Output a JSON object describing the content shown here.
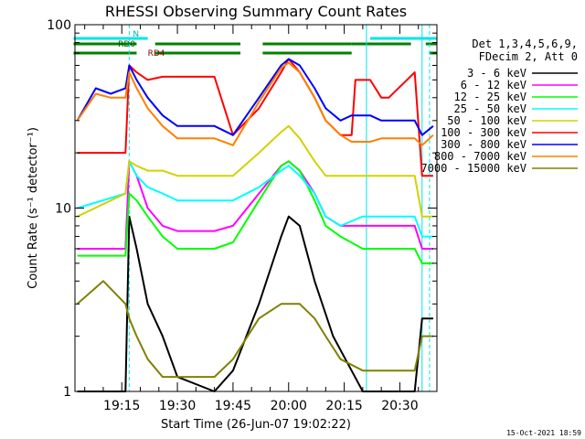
{
  "chart_data": {
    "type": "line",
    "title": "RHESSI Observing Summary Count Rates",
    "xlabel": "Start Time (26-Jun-07 19:02:22)",
    "ylabel": "Count Rate (s⁻¹ detector⁻¹)",
    "yscale": "log",
    "ylim": [
      1,
      100
    ],
    "xlim": [
      "19:02:22",
      "20:40:00"
    ],
    "x_ticks": [
      "19:15",
      "19:30",
      "19:45",
      "20:00",
      "20:15",
      "20:30"
    ],
    "y_ticks": [
      "1",
      "10",
      "100"
    ],
    "legend_header": [
      "Det 1,3,4,5,6,9,",
      "FDecim 2, Att 0"
    ],
    "legend_placement": "right",
    "timestamp": "15-Oct-2021 18:59",
    "flags": [
      {
        "label": "N",
        "color": "#00e5e5",
        "intervals": [
          [
            "19:02",
            "19:22"
          ],
          [
            "20:22",
            "20:40"
          ]
        ]
      },
      {
        "label": "RD0",
        "color": "#008000",
        "intervals": [
          [
            "19:02",
            "19:19"
          ],
          [
            "19:24",
            "19:47"
          ],
          [
            "19:53",
            "20:17"
          ],
          [
            "20:17",
            "20:33"
          ],
          [
            "20:37",
            "20:40"
          ]
        ]
      },
      {
        "label": "RD4",
        "color": "#008000",
        "intervals": [
          [
            "19:02",
            "19:19"
          ],
          [
            "19:24",
            "19:47"
          ],
          [
            "19:53",
            "20:17"
          ],
          [
            "20:38",
            "20:40"
          ]
        ]
      }
    ],
    "series": [
      {
        "name": "3 - 6 keV",
        "color": "#000000",
        "points": [
          [
            "19:03",
            1.0
          ],
          [
            "19:16",
            1.0
          ],
          [
            "19:17",
            9
          ],
          [
            "19:19",
            6
          ],
          [
            "19:22",
            3
          ],
          [
            "19:26",
            2
          ],
          [
            "19:30",
            1.2
          ],
          [
            "19:40",
            1.0
          ],
          [
            "19:45",
            1.3
          ],
          [
            "19:52",
            3
          ],
          [
            "19:58",
            7
          ],
          [
            "20:00",
            9
          ],
          [
            "20:03",
            8
          ],
          [
            "20:07",
            4
          ],
          [
            "20:12",
            2
          ],
          [
            "20:20",
            1.0
          ],
          [
            "20:34",
            1.0
          ],
          [
            "20:36",
            2.5
          ],
          [
            "20:39",
            2.5
          ]
        ]
      },
      {
        "name": "6 - 12 keV",
        "color": "#ff00ff",
        "points": [
          [
            "19:03",
            6.0
          ],
          [
            "19:16",
            6.0
          ],
          [
            "19:17",
            18
          ],
          [
            "19:19",
            15
          ],
          [
            "19:22",
            10
          ],
          [
            "19:26",
            8
          ],
          [
            "19:30",
            7.5
          ],
          [
            "19:40",
            7.5
          ],
          [
            "19:45",
            8
          ],
          [
            "19:52",
            12
          ],
          [
            "19:58",
            17
          ],
          [
            "20:00",
            18
          ],
          [
            "20:03",
            16
          ],
          [
            "20:07",
            12
          ],
          [
            "20:10",
            9
          ],
          [
            "20:14",
            8
          ],
          [
            "20:20",
            8
          ],
          [
            "20:23",
            8
          ],
          [
            "20:27",
            8
          ],
          [
            "20:34",
            8
          ],
          [
            "20:36",
            6
          ],
          [
            "20:39",
            6
          ]
        ]
      },
      {
        "name": "12 - 25 keV",
        "color": "#00ff00",
        "points": [
          [
            "19:03",
            5.5
          ],
          [
            "19:16",
            5.5
          ],
          [
            "19:17",
            12
          ],
          [
            "19:19",
            11
          ],
          [
            "19:22",
            9
          ],
          [
            "19:26",
            7
          ],
          [
            "19:30",
            6
          ],
          [
            "19:40",
            6
          ],
          [
            "19:45",
            6.5
          ],
          [
            "19:52",
            11
          ],
          [
            "19:58",
            17
          ],
          [
            "20:00",
            18
          ],
          [
            "20:03",
            16
          ],
          [
            "20:07",
            11
          ],
          [
            "20:10",
            8
          ],
          [
            "20:14",
            7
          ],
          [
            "20:20",
            6
          ],
          [
            "20:23",
            6
          ],
          [
            "20:27",
            6
          ],
          [
            "20:34",
            6
          ],
          [
            "20:36",
            5
          ],
          [
            "20:39",
            5
          ]
        ]
      },
      {
        "name": "25 - 50 keV",
        "color": "#00ffff",
        "points": [
          [
            "19:03",
            10
          ],
          [
            "19:16",
            12
          ],
          [
            "19:17",
            18
          ],
          [
            "19:19",
            15
          ],
          [
            "19:22",
            13
          ],
          [
            "19:26",
            12
          ],
          [
            "19:30",
            11
          ],
          [
            "19:40",
            11
          ],
          [
            "19:45",
            11
          ],
          [
            "19:52",
            13
          ],
          [
            "19:58",
            16
          ],
          [
            "20:00",
            17
          ],
          [
            "20:03",
            15
          ],
          [
            "20:07",
            12
          ],
          [
            "20:10",
            9
          ],
          [
            "20:14",
            8
          ],
          [
            "20:20",
            9
          ],
          [
            "20:23",
            9
          ],
          [
            "20:27",
            9
          ],
          [
            "20:34",
            9
          ],
          [
            "20:36",
            7
          ],
          [
            "20:39",
            7
          ]
        ]
      },
      {
        "name": "50 - 100 keV",
        "color": "#d2d200",
        "points": [
          [
            "19:03",
            9
          ],
          [
            "19:16",
            12
          ],
          [
            "19:17",
            18
          ],
          [
            "19:19",
            17
          ],
          [
            "19:22",
            16
          ],
          [
            "19:26",
            16
          ],
          [
            "19:30",
            15
          ],
          [
            "19:40",
            15
          ],
          [
            "19:45",
            15
          ],
          [
            "19:52",
            20
          ],
          [
            "19:58",
            26
          ],
          [
            "20:00",
            28
          ],
          [
            "20:03",
            24
          ],
          [
            "20:07",
            18
          ],
          [
            "20:10",
            15
          ],
          [
            "20:14",
            15
          ],
          [
            "20:20",
            15
          ],
          [
            "20:23",
            15
          ],
          [
            "20:27",
            15
          ],
          [
            "20:34",
            15
          ],
          [
            "20:36",
            9
          ],
          [
            "20:39",
            9
          ]
        ]
      },
      {
        "name": "100 - 300 keV",
        "color": "#ff0000",
        "points": [
          [
            "19:03",
            20
          ],
          [
            "19:16",
            20
          ],
          [
            "19:17",
            60
          ],
          [
            "19:19",
            55
          ],
          [
            "19:22",
            50
          ],
          [
            "19:26",
            52
          ],
          [
            "19:30",
            52
          ],
          [
            "19:40",
            52
          ],
          [
            "19:45",
            25
          ],
          [
            "19:52",
            35
          ],
          [
            "19:58",
            55
          ],
          [
            "20:00",
            65
          ],
          [
            "20:03",
            55
          ],
          [
            "20:07",
            40
          ],
          [
            "20:10",
            30
          ],
          [
            "20:14",
            25
          ],
          [
            "20:17",
            25
          ],
          [
            "20:18",
            50
          ],
          [
            "20:22",
            50
          ],
          [
            "20:25",
            40
          ],
          [
            "20:27",
            40
          ],
          [
            "20:34",
            55
          ],
          [
            "20:36",
            15
          ],
          [
            "20:39",
            15
          ]
        ]
      },
      {
        "name": "300 - 800 keV",
        "color": "#0000ff",
        "points": [
          [
            "19:03",
            30
          ],
          [
            "19:08",
            45
          ],
          [
            "19:12",
            42
          ],
          [
            "19:16",
            45
          ],
          [
            "19:17",
            60
          ],
          [
            "19:19",
            50
          ],
          [
            "19:22",
            40
          ],
          [
            "19:26",
            32
          ],
          [
            "19:30",
            28
          ],
          [
            "19:40",
            28
          ],
          [
            "19:45",
            25
          ],
          [
            "19:52",
            40
          ],
          [
            "19:58",
            60
          ],
          [
            "20:00",
            65
          ],
          [
            "20:03",
            60
          ],
          [
            "20:07",
            45
          ],
          [
            "20:10",
            35
          ],
          [
            "20:14",
            30
          ],
          [
            "20:17",
            32
          ],
          [
            "20:22",
            32
          ],
          [
            "20:25",
            30
          ],
          [
            "20:27",
            30
          ],
          [
            "20:34",
            30
          ],
          [
            "20:36",
            25
          ],
          [
            "20:39",
            28
          ]
        ]
      },
      {
        "name": "800 - 7000 keV",
        "color": "#ff8000",
        "points": [
          [
            "19:03",
            30
          ],
          [
            "19:08",
            42
          ],
          [
            "19:12",
            40
          ],
          [
            "19:16",
            40
          ],
          [
            "19:17",
            55
          ],
          [
            "19:19",
            45
          ],
          [
            "19:22",
            35
          ],
          [
            "19:26",
            28
          ],
          [
            "19:30",
            24
          ],
          [
            "19:40",
            24
          ],
          [
            "19:45",
            22
          ],
          [
            "19:52",
            38
          ],
          [
            "19:58",
            58
          ],
          [
            "20:00",
            62
          ],
          [
            "20:03",
            55
          ],
          [
            "20:07",
            40
          ],
          [
            "20:10",
            30
          ],
          [
            "20:14",
            25
          ],
          [
            "20:17",
            23
          ],
          [
            "20:22",
            23
          ],
          [
            "20:25",
            24
          ],
          [
            "20:27",
            24
          ],
          [
            "20:34",
            24
          ],
          [
            "20:36",
            22
          ],
          [
            "20:39",
            25
          ]
        ]
      },
      {
        "name": "7000 - 15000 keV",
        "color": "#808000",
        "points": [
          [
            "19:03",
            3
          ],
          [
            "19:10",
            4
          ],
          [
            "19:16",
            3
          ],
          [
            "19:17",
            2.5
          ],
          [
            "19:19",
            2
          ],
          [
            "19:22",
            1.5
          ],
          [
            "19:26",
            1.2
          ],
          [
            "19:30",
            1.2
          ],
          [
            "19:40",
            1.2
          ],
          [
            "19:45",
            1.5
          ],
          [
            "19:52",
            2.5
          ],
          [
            "19:58",
            3
          ],
          [
            "20:00",
            3
          ],
          [
            "20:03",
            3
          ],
          [
            "20:07",
            2.5
          ],
          [
            "20:10",
            2
          ],
          [
            "20:14",
            1.5
          ],
          [
            "20:20",
            1.3
          ],
          [
            "20:27",
            1.3
          ],
          [
            "20:34",
            1.3
          ],
          [
            "20:36",
            2
          ],
          [
            "20:39",
            2
          ]
        ]
      }
    ],
    "vertical_markers": [
      {
        "time": "19:17",
        "color": "#00e5e5",
        "style": "dashed"
      },
      {
        "time": "20:38",
        "color": "#00e5e5",
        "style": "dashed"
      },
      {
        "time": "20:21",
        "color": "#00e5e5",
        "style": "solid"
      },
      {
        "time": "20:36",
        "color": "#00e5e5",
        "style": "solid"
      }
    ]
  }
}
